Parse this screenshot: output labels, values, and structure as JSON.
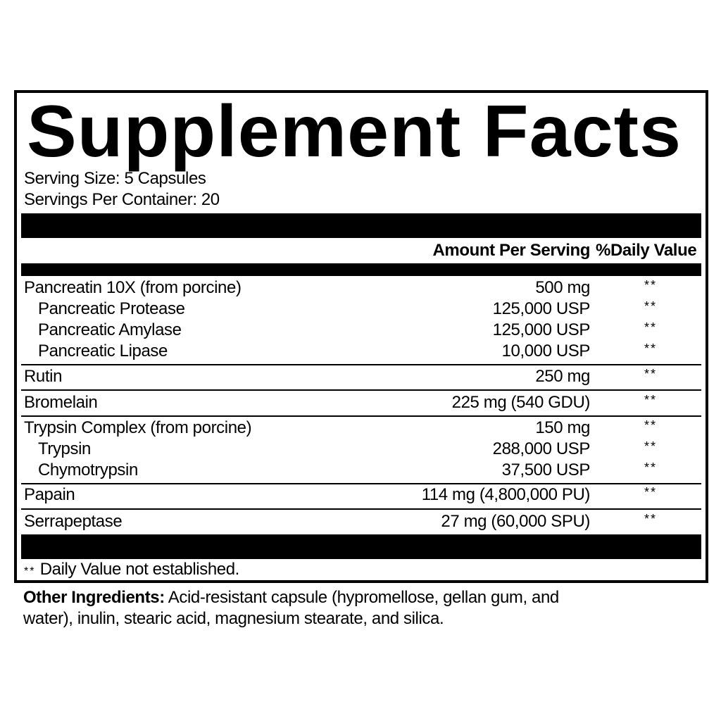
{
  "title": "Supplement Facts",
  "serving_size": "Serving Size: 5 Capsules",
  "servings_per_container": "Servings Per Container: 20",
  "header": {
    "amount": "Amount Per Serving",
    "dv": "%Daily Value"
  },
  "rows": [
    {
      "name": "Pancreatin 10X (from porcine)",
      "amount": "500 mg",
      "dv": "**",
      "indent": false
    },
    {
      "name": "Pancreatic Protease",
      "amount": "125,000 USP",
      "dv": "**",
      "indent": true
    },
    {
      "name": "Pancreatic Amylase",
      "amount": "125,000 USP",
      "dv": "**",
      "indent": true
    },
    {
      "name": "Pancreatic Lipase",
      "amount": "10,000 USP",
      "dv": "**",
      "indent": true
    },
    {
      "name": "Rutin",
      "amount": "250 mg",
      "dv": "**",
      "indent": false
    },
    {
      "name": "Bromelain",
      "amount": "225 mg (540 GDU)",
      "dv": "**",
      "indent": false
    },
    {
      "name": "Trypsin Complex (from porcine)",
      "amount": "150 mg",
      "dv": "**",
      "indent": false
    },
    {
      "name": "Trypsin",
      "amount": "288,000 USP",
      "dv": "**",
      "indent": true
    },
    {
      "name": "Chymotrypsin",
      "amount": "37,500 USP",
      "dv": "**",
      "indent": true
    },
    {
      "name": "Papain",
      "amount": "114 mg (4,800,000 PU)",
      "dv": "**",
      "indent": false
    },
    {
      "name": "Serrapeptase",
      "amount": "27 mg (60,000 SPU)",
      "dv": "**",
      "indent": false
    }
  ],
  "footnote": {
    "mark": "**",
    "text": "Daily Value not established."
  },
  "other_ingredients": {
    "label": "Other Ingredients:",
    "text": " Acid-resistant capsule (hypromellose, gellan gum, and water), inulin, stearic acid, magnesium stearate, and silica."
  }
}
